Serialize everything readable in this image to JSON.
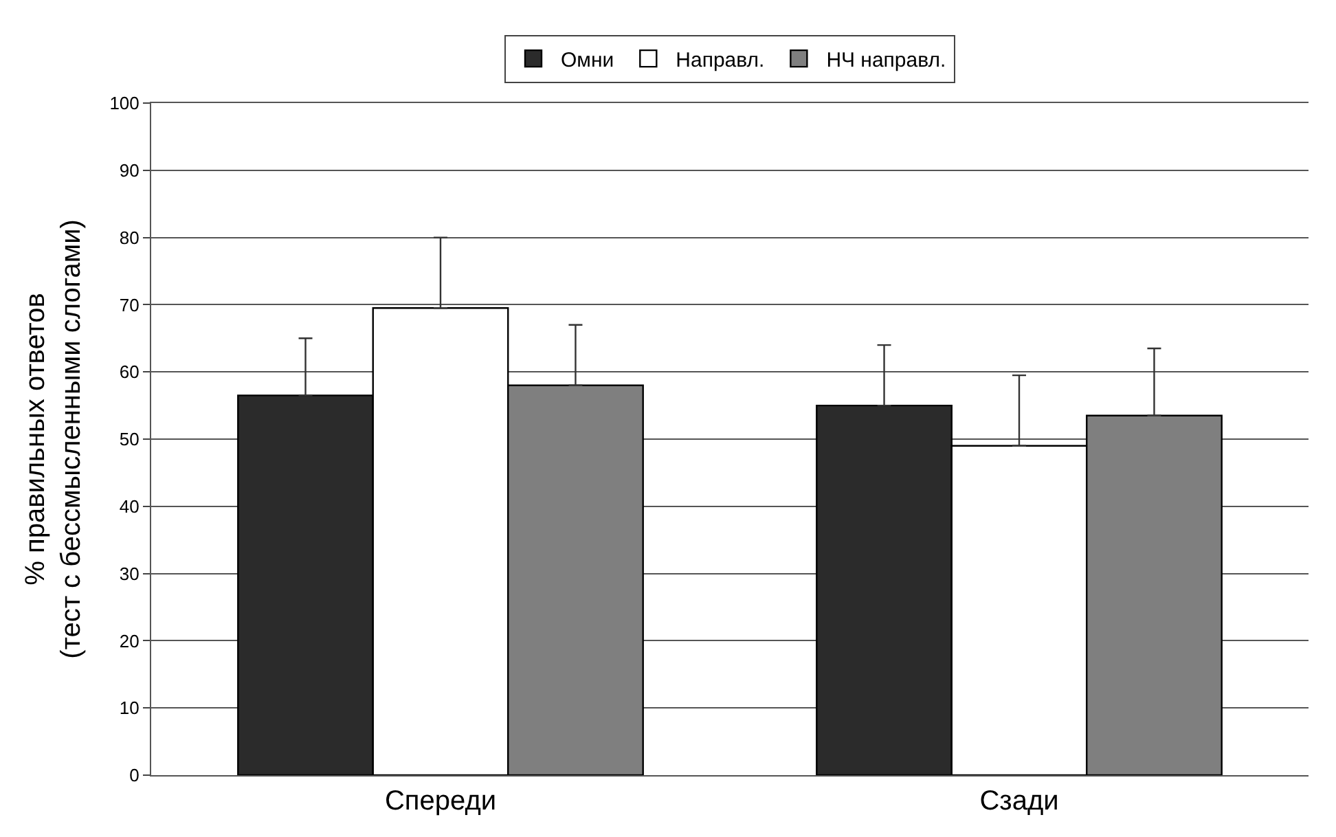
{
  "chart_data": {
    "type": "bar",
    "ylabel": "% правильных ответов\n(тест с бессмысленными слогами)",
    "categories": [
      "Спереди",
      "Сзади"
    ],
    "series": [
      {
        "name": "Омни",
        "color": "#2b2b2b",
        "values": [
          56.5,
          55
        ],
        "errors": [
          [
            56.5,
            65
          ],
          [
            55,
            64
          ]
        ]
      },
      {
        "name": "Направл.",
        "color": "#ffffff",
        "values": [
          69.5,
          49
        ],
        "errors": [
          [
            69.5,
            80
          ],
          [
            49,
            59.5
          ]
        ]
      },
      {
        "name": "НЧ направл.",
        "color": "#7f7f7f",
        "values": [
          58,
          53.5
        ],
        "errors": [
          [
            58,
            67
          ],
          [
            53.5,
            63.5
          ]
        ]
      }
    ],
    "ylim": [
      0,
      100
    ],
    "yticks": [
      0,
      10,
      20,
      30,
      40,
      50,
      60,
      70,
      80,
      90,
      100
    ],
    "grid": "y",
    "legend": "top"
  }
}
